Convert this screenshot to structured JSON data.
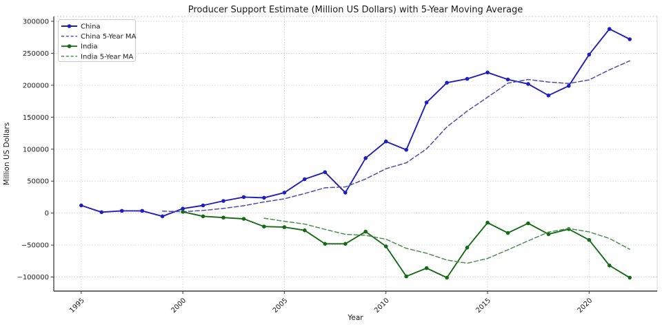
{
  "figure": {
    "title": "Producer Support Estimate (Million US Dollars) with 5-Year Moving Average",
    "xlabel": "Year",
    "ylabel": "Million US Dollars"
  },
  "chart_data": {
    "type": "line",
    "title": "Producer Support Estimate (Million US Dollars) with 5-Year Moving Average",
    "xlabel": "Year",
    "ylabel": "Million US Dollars",
    "xlim": [
      1993.65,
      2023.35
    ],
    "ylim": [
      -122000,
      307500
    ],
    "xticks": [
      1995,
      2000,
      2005,
      2010,
      2015,
      2020
    ],
    "yticks": [
      -100000,
      -50000,
      0,
      50000,
      100000,
      150000,
      200000,
      250000,
      300000
    ],
    "grid": true,
    "grid_color": "#c9c9c9",
    "legend_position": "upper left",
    "ma_window": 5,
    "series": [
      {
        "name": "China",
        "color": "#1e1ebe",
        "style": "solid",
        "marker": "circle",
        "x": [
          1995,
          1996,
          1997,
          1998,
          1999,
          2000,
          2001,
          2002,
          2003,
          2004,
          2005,
          2006,
          2007,
          2008,
          2009,
          2010,
          2011,
          2012,
          2013,
          2014,
          2015,
          2016,
          2017,
          2018,
          2019,
          2020,
          2021,
          2022
        ],
        "values": [
          12000,
          1500,
          3500,
          3500,
          -5000,
          7000,
          12000,
          19000,
          25000,
          24000,
          32000,
          53000,
          64000,
          32000,
          86000,
          112000,
          99000,
          173000,
          204000,
          210000,
          220000,
          209000,
          202000,
          184000,
          199000,
          248000,
          288000,
          272000
        ]
      },
      {
        "name": "China 5-Year MA",
        "color": "#4c4cae",
        "style": "dashed",
        "marker": "none",
        "derived_from": "China",
        "derivation": "trailing 5-year moving average"
      },
      {
        "name": "India",
        "color": "#156b15",
        "style": "solid",
        "marker": "circle",
        "x": [
          2000,
          2001,
          2002,
          2003,
          2004,
          2005,
          2006,
          2007,
          2008,
          2009,
          2010,
          2011,
          2012,
          2013,
          2014,
          2015,
          2016,
          2017,
          2018,
          2019,
          2020,
          2021,
          2022
        ],
        "values": [
          2000,
          -5000,
          -7000,
          -9000,
          -21000,
          -22000,
          -27000,
          -48000,
          -48000,
          -29000,
          -52000,
          -99000,
          -86000,
          -101000,
          -54000,
          -15000,
          -31000,
          -16000,
          -33000,
          -25000,
          -42000,
          -82000,
          -101000
        ]
      },
      {
        "name": "India 5-Year MA",
        "color": "#4c924c",
        "style": "dashed",
        "marker": "none",
        "derived_from": "India",
        "derivation": "trailing 5-year moving average"
      }
    ]
  }
}
